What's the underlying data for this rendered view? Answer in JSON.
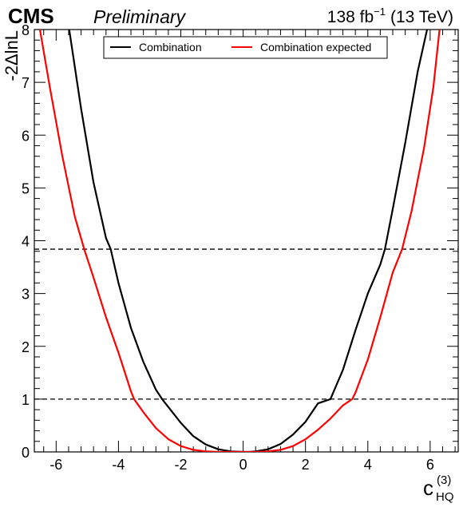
{
  "header": {
    "experiment": "CMS",
    "status": "Preliminary",
    "lumi_value": "138 fb",
    "lumi_exponent": "−1",
    "energy": "(13 TeV)"
  },
  "legend": {
    "items": [
      {
        "label": "Combination",
        "color": "#000000"
      },
      {
        "label": "Combination expected",
        "color": "#ff0000"
      }
    ]
  },
  "chart_data": {
    "type": "line",
    "title": "",
    "ylabel": "-2ΔlnL",
    "xlabel": {
      "base": "c",
      "superscript": "(3)",
      "subscript": "HQ"
    },
    "xlim": [
      -6.7,
      6.9
    ],
    "ylim": [
      0,
      8
    ],
    "x_ticks": [
      -6,
      -4,
      -2,
      0,
      2,
      4,
      6
    ],
    "y_ticks": [
      0,
      1,
      2,
      3,
      4,
      5,
      6,
      7,
      8
    ],
    "x_tick_labels": [
      "-6",
      "-4",
      "-2",
      "0",
      "2",
      "4",
      "6"
    ],
    "y_tick_labels": [
      "0",
      "1",
      "2",
      "3",
      "4",
      "5",
      "6",
      "7",
      "8"
    ],
    "reference_lines": [
      {
        "y": 1.0,
        "style": "dashed",
        "color": "#000000"
      },
      {
        "y": 3.84,
        "style": "dashed",
        "color": "#000000"
      }
    ],
    "series": [
      {
        "name": "Combination",
        "color": "#000000",
        "x": [
          -5.58,
          -5.2,
          -4.8,
          -4.4,
          -4.25,
          -4.0,
          -3.6,
          -3.2,
          -2.8,
          -2.6,
          -2.4,
          -2.0,
          -1.6,
          -1.2,
          -0.8,
          -0.4,
          0.0,
          0.2,
          0.4,
          0.8,
          1.2,
          1.6,
          2.0,
          2.4,
          2.8,
          3.2,
          3.6,
          4.0,
          4.4,
          4.55,
          4.8,
          5.2,
          5.6,
          5.9
        ],
        "y": [
          8.0,
          6.5,
          5.1,
          4.05,
          3.84,
          3.2,
          2.35,
          1.7,
          1.18,
          1.0,
          0.85,
          0.55,
          0.3,
          0.14,
          0.05,
          0.01,
          0.0,
          0.0,
          0.01,
          0.05,
          0.15,
          0.33,
          0.57,
          0.92,
          1.0,
          1.55,
          2.3,
          3.0,
          3.55,
          3.84,
          4.6,
          5.85,
          7.2,
          8.0
        ]
      },
      {
        "name": "Combination expected",
        "color": "#ff0000",
        "x": [
          -6.52,
          -6.2,
          -5.8,
          -5.4,
          -5.1,
          -4.8,
          -4.4,
          -4.0,
          -3.6,
          -3.5,
          -3.2,
          -2.8,
          -2.4,
          -2.0,
          -1.6,
          -1.2,
          -0.8,
          -0.4,
          0.0,
          0.4,
          0.8,
          1.2,
          1.6,
          2.0,
          2.4,
          2.8,
          3.2,
          3.5,
          3.6,
          4.0,
          4.4,
          4.8,
          5.1,
          5.4,
          5.8,
          6.1,
          6.3
        ],
        "y": [
          8.0,
          6.9,
          5.6,
          4.45,
          3.84,
          3.3,
          2.55,
          1.88,
          1.15,
          1.0,
          0.75,
          0.45,
          0.24,
          0.11,
          0.04,
          0.01,
          0.0,
          0.0,
          0.0,
          0.0,
          0.01,
          0.04,
          0.11,
          0.24,
          0.42,
          0.63,
          0.88,
          1.0,
          1.12,
          1.75,
          2.55,
          3.4,
          3.84,
          4.55,
          5.75,
          6.9,
          8.0
        ]
      }
    ]
  }
}
